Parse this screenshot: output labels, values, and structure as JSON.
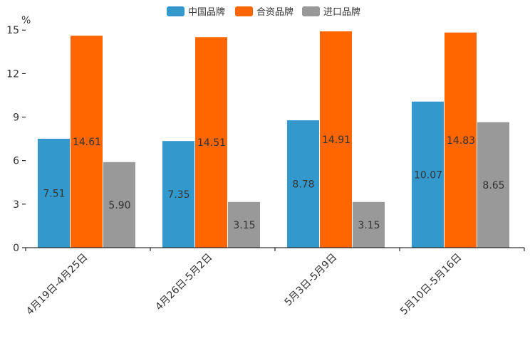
{
  "chart_data": {
    "type": "bar",
    "unit": "%",
    "categories": [
      "4月19日-4月25日",
      "4月26日-5月2日",
      "5月3日-5月9日",
      "5月10日-5月16日"
    ],
    "series": [
      {
        "name": "中国品牌",
        "color": "#3399cc",
        "values": [
          7.51,
          7.35,
          8.78,
          10.07
        ]
      },
      {
        "name": "合资品牌",
        "color": "#ff6600",
        "values": [
          14.61,
          14.51,
          14.91,
          14.83
        ]
      },
      {
        "name": "进口品牌",
        "color": "#999999",
        "values": [
          5.9,
          3.15,
          3.15,
          8.65
        ]
      }
    ],
    "value_labels": [
      [
        "7.51",
        "7.35",
        "8.78",
        "10.07"
      ],
      [
        "14.61",
        "14.51",
        "14.91",
        "14.83"
      ],
      [
        "5.90",
        "3.15",
        "3.15",
        "8.65"
      ]
    ],
    "yticks": [
      "0",
      "3",
      "6",
      "9",
      "12",
      "15"
    ],
    "ylim": [
      0,
      15.6
    ],
    "legend_position": "top-center",
    "title": "",
    "xlabel": "",
    "ylabel": ""
  }
}
